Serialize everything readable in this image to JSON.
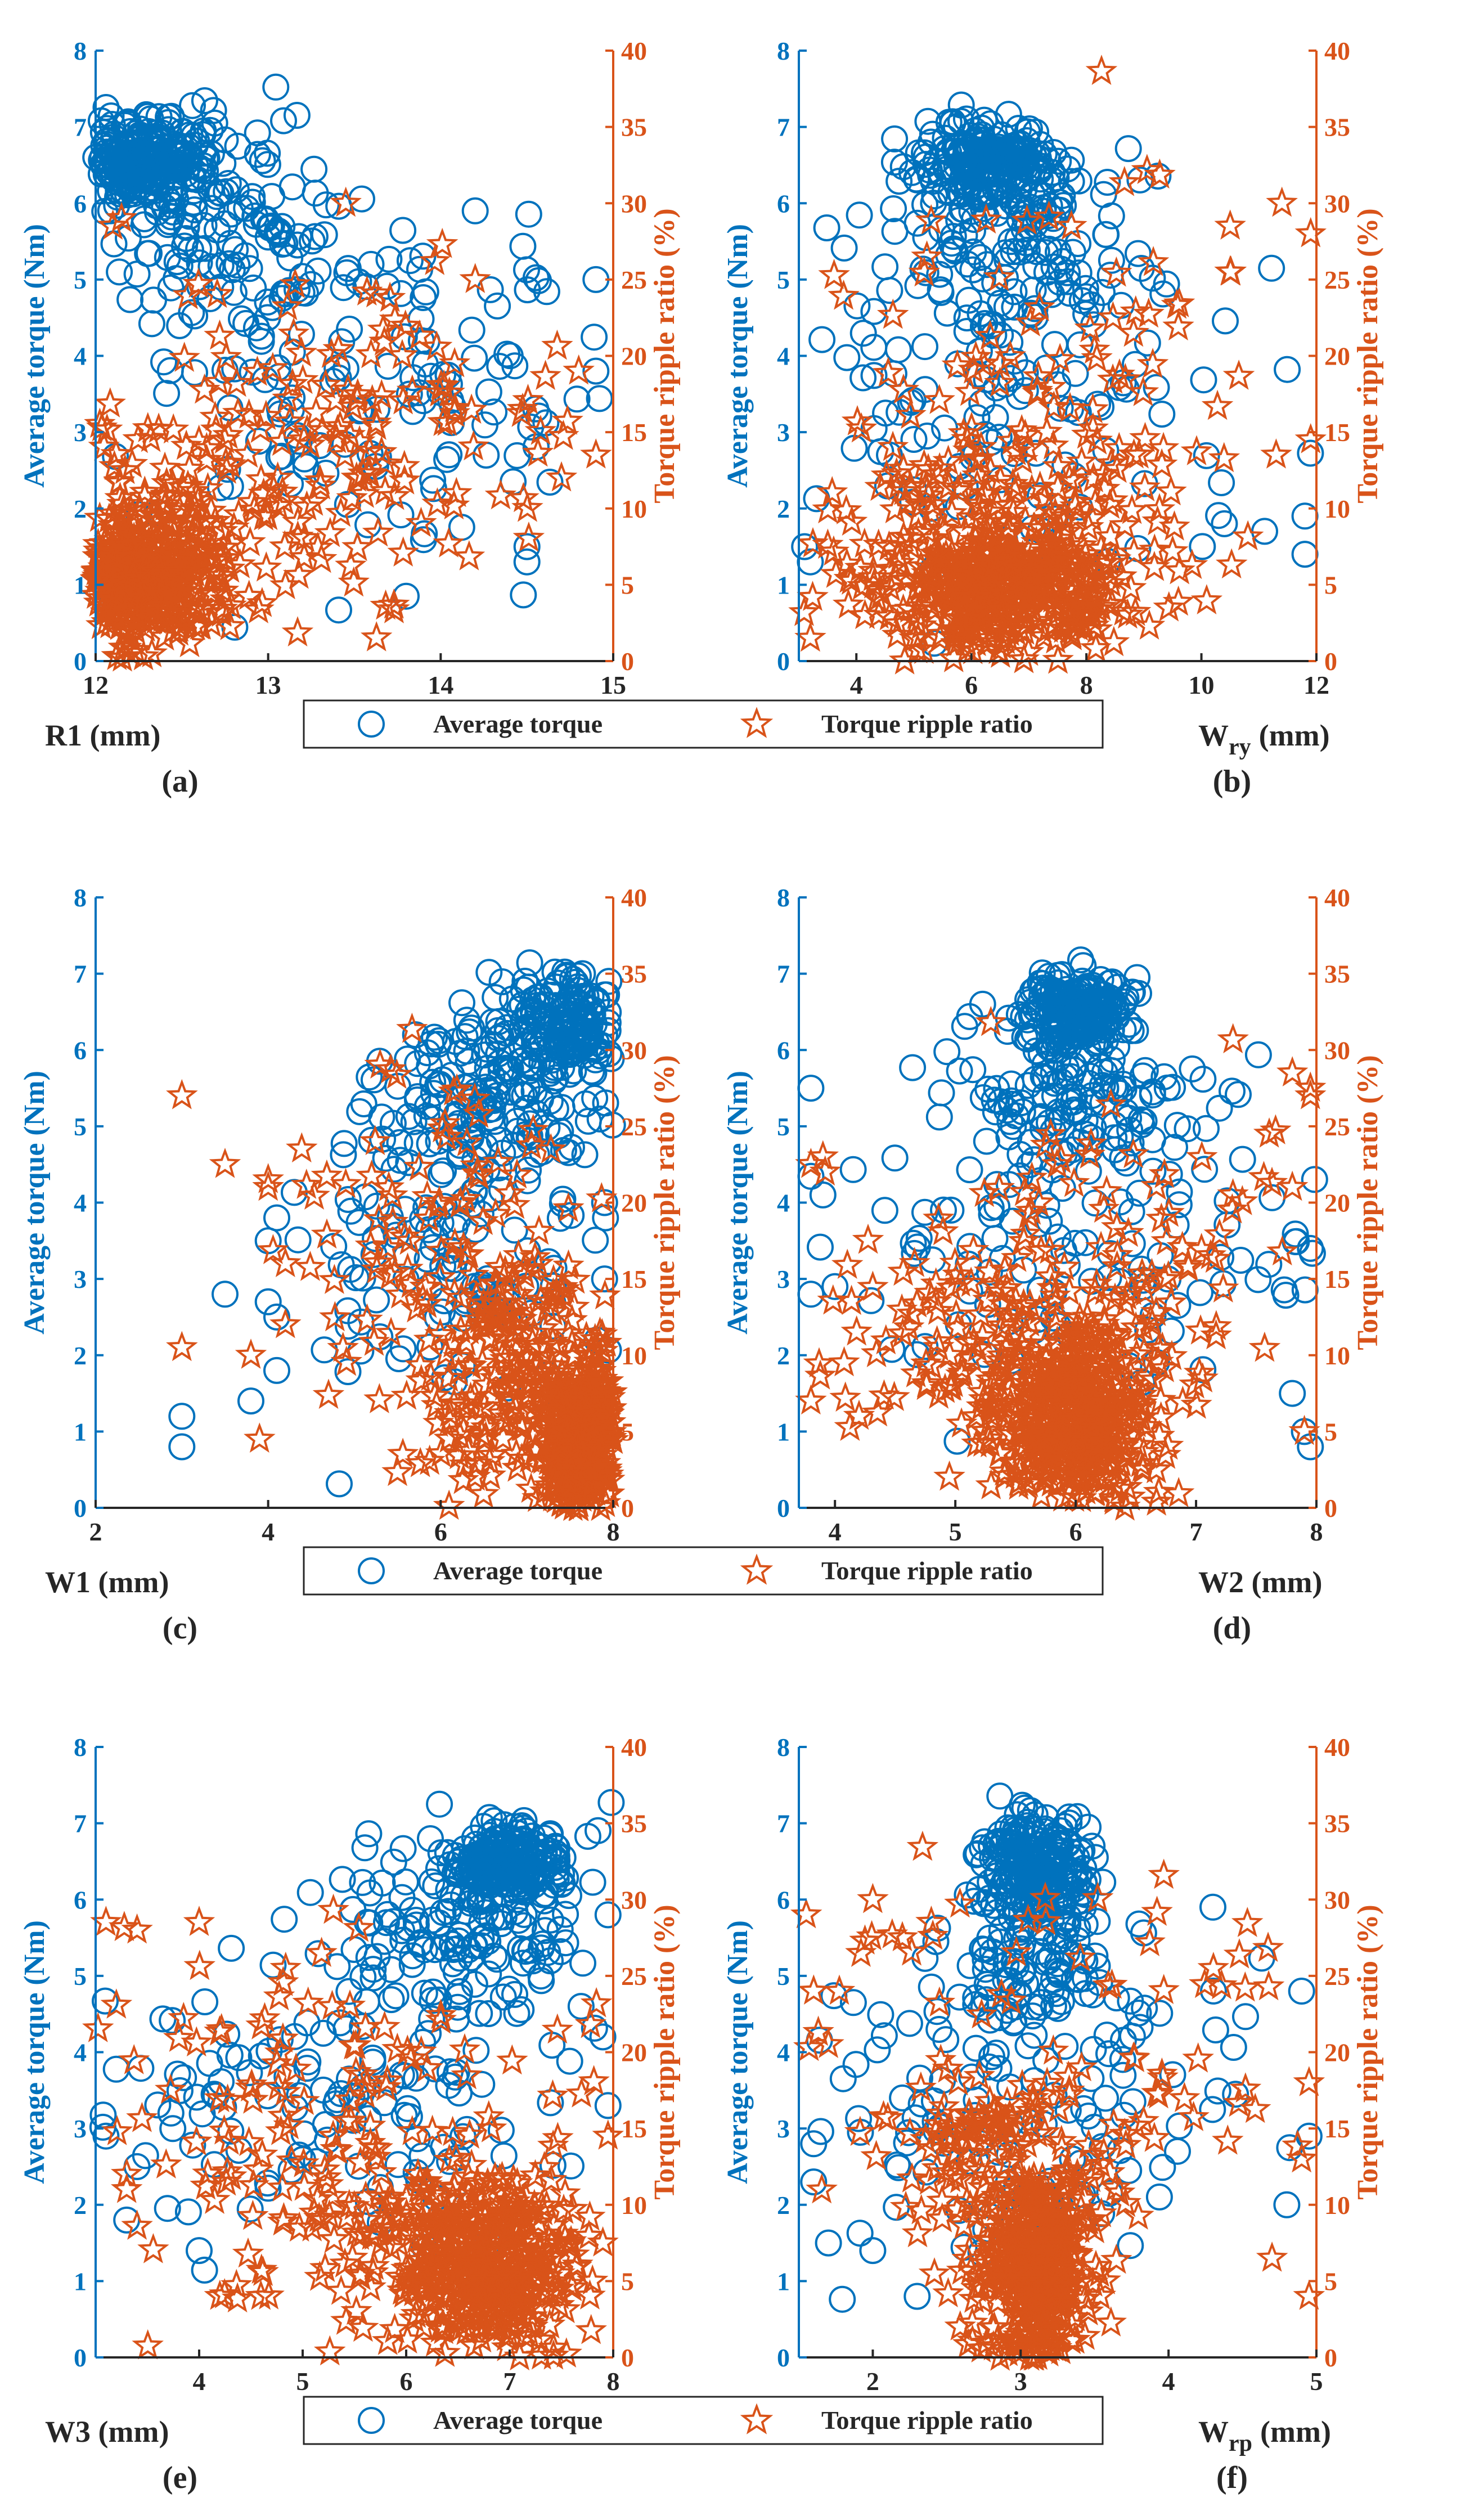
{
  "colors": {
    "torque": "#0072BD",
    "ripple": "#D95319",
    "axis": "#262626",
    "background": "#ffffff"
  },
  "legend": {
    "avg_label": "Average torque",
    "ripple_label": "Torque ripple ratio"
  },
  "chart_data": [
    {
      "type": "scatter",
      "panel_label": "(a)",
      "xlabel": "R1 (mm)",
      "xlabel_main": "R1 (mm)",
      "xlabel_sub": "",
      "xlim": [
        12,
        15
      ],
      "xticks": [
        12,
        13,
        14,
        15
      ],
      "ylabel_left": "Average torque (Nm)",
      "ylim_left": [
        0,
        8
      ],
      "yticks_left": [
        0,
        1,
        2,
        3,
        4,
        5,
        6,
        7,
        8
      ],
      "ylabel_right": "Torque ripple ratio (%)",
      "ylim_right": [
        0,
        40
      ],
      "yticks_right": [
        0,
        5,
        10,
        15,
        20,
        25,
        30,
        35,
        40
      ],
      "series": [
        {
          "name": "Average torque",
          "marker": "circle",
          "axis": "left",
          "clusters": [
            {
              "cx": 12.3,
              "cy": 6.55,
              "sx": 0.18,
              "sy": 0.3,
              "n": 230
            },
            {
              "cx": 12.7,
              "cy": 5.6,
              "sx": 0.4,
              "sy": 0.8,
              "n": 140
            },
            {
              "cx": 13.5,
              "cy": 3.8,
              "sx": 0.7,
              "sy": 1.2,
              "n": 100
            },
            {
              "cx": 14.2,
              "cy": 3.3,
              "sx": 0.5,
              "sy": 1.2,
              "n": 40
            }
          ],
          "points": [
            [
              12.05,
              1.3
            ],
            [
              12.1,
              0.8
            ],
            [
              13.8,
              0.85
            ],
            [
              14.5,
              1.3
            ],
            [
              14.5,
              1.5
            ],
            [
              14.9,
              5.0
            ],
            [
              14.9,
              3.8
            ],
            [
              14.2,
              5.9
            ]
          ]
        },
        {
          "name": "Torque ripple ratio",
          "marker": "star",
          "axis": "right",
          "clusters": [
            {
              "cx": 12.25,
              "cy": 5.5,
              "sx": 0.22,
              "sy": 2.2,
              "n": 450
            },
            {
              "cx": 12.8,
              "cy": 10.0,
              "sx": 0.5,
              "sy": 4.0,
              "n": 130
            },
            {
              "cx": 13.6,
              "cy": 16.0,
              "sx": 0.7,
              "sy": 6.0,
              "n": 110
            }
          ],
          "points": [
            [
              12.1,
              28.5
            ],
            [
              12.15,
              29.0
            ],
            [
              13.45,
              30.0
            ],
            [
              14.2,
              25.0
            ],
            [
              14.7,
              12.0
            ],
            [
              14.9,
              13.5
            ],
            [
              14.8,
              19.0
            ]
          ]
        }
      ]
    },
    {
      "type": "scatter",
      "panel_label": "(b)",
      "xlabel": "W_ry (mm)",
      "xlabel_main": "W",
      "xlabel_sub": "ry",
      "xlabel_unit": "(mm)",
      "xlim": [
        3,
        12
      ],
      "xticks": [
        4,
        6,
        8,
        10,
        12
      ],
      "ylabel_left": "Average torque (Nm)",
      "ylim_left": [
        0,
        8
      ],
      "yticks_left": [
        0,
        1,
        2,
        3,
        4,
        5,
        6,
        7,
        8
      ],
      "ylabel_right": "Torque ripple ratio (%)",
      "ylim_right": [
        0,
        40
      ],
      "yticks_right": [
        0,
        5,
        10,
        15,
        20,
        25,
        30,
        35,
        40
      ],
      "series": [
        {
          "name": "Average torque",
          "marker": "circle",
          "axis": "left",
          "clusters": [
            {
              "cx": 6.3,
              "cy": 6.55,
              "sx": 0.6,
              "sy": 0.25,
              "n": 200
            },
            {
              "cx": 6.8,
              "cy": 5.7,
              "sx": 1.2,
              "sy": 0.6,
              "n": 130
            },
            {
              "cx": 6.5,
              "cy": 3.5,
              "sx": 2.0,
              "sy": 1.2,
              "n": 130
            }
          ],
          "points": [
            [
              3.2,
              1.3
            ],
            [
              3.1,
              1.5
            ],
            [
              11.8,
              1.4
            ],
            [
              11.8,
              1.9
            ],
            [
              11.1,
              1.7
            ],
            [
              10.4,
              1.8
            ]
          ]
        },
        {
          "name": "Torque ripple ratio",
          "marker": "star",
          "axis": "right",
          "clusters": [
            {
              "cx": 6.5,
              "cy": 4.5,
              "sx": 1.1,
              "sy": 2.2,
              "n": 420
            },
            {
              "cx": 6.8,
              "cy": 9.5,
              "sx": 1.8,
              "sy": 3.5,
              "n": 160
            },
            {
              "cx": 7.0,
              "cy": 20.0,
              "sx": 2.0,
              "sy": 6.0,
              "n": 70
            }
          ],
          "points": [
            [
              3.2,
              1.5
            ],
            [
              11.9,
              28.0
            ],
            [
              11.4,
              30.0
            ],
            [
              10.5,
              28.5
            ],
            [
              10.5,
              25.5
            ],
            [
              11.9,
              14.5
            ],
            [
              11.3,
              13.5
            ]
          ]
        }
      ]
    },
    {
      "type": "scatter",
      "panel_label": "(c)",
      "xlabel": "W1 (mm)",
      "xlabel_main": "W1 (mm)",
      "xlabel_sub": "",
      "xlim": [
        2,
        8
      ],
      "xticks": [
        2,
        4,
        6,
        8
      ],
      "ylabel_left": "Average torque (Nm)",
      "ylim_left": [
        0,
        8
      ],
      "yticks_left": [
        0,
        1,
        2,
        3,
        4,
        5,
        6,
        7,
        8
      ],
      "ylabel_right": "Torque ripple ratio (%)",
      "ylim_right": [
        0,
        40
      ],
      "yticks_right": [
        0,
        5,
        10,
        15,
        20,
        25,
        30,
        35,
        40
      ],
      "series": [
        {
          "name": "Average torque",
          "marker": "circle",
          "axis": "left",
          "clusters": [
            {
              "cx": 7.5,
              "cy": 6.3,
              "sx": 0.35,
              "sy": 0.35,
              "n": 170
            },
            {
              "cx": 6.6,
              "cy": 5.3,
              "sx": 0.6,
              "sy": 0.6,
              "n": 140
            },
            {
              "cx": 6.0,
              "cy": 3.3,
              "sx": 0.9,
              "sy": 1.1,
              "n": 120
            }
          ],
          "points": [
            [
              3.0,
              1.2
            ],
            [
              3.0,
              0.8
            ],
            [
              3.5,
              2.8
            ],
            [
              3.8,
              1.4
            ],
            [
              4.0,
              2.7
            ],
            [
              4.1,
              2.5
            ],
            [
              4.1,
              1.8
            ],
            [
              4.0,
              3.5
            ],
            [
              4.1,
              3.8
            ],
            [
              7.95,
              6.9
            ],
            [
              7.9,
              4.0
            ],
            [
              7.9,
              3.0
            ]
          ]
        },
        {
          "name": "Torque ripple ratio",
          "marker": "star",
          "axis": "right",
          "clusters": [
            {
              "cx": 7.6,
              "cy": 4.5,
              "sx": 0.25,
              "sy": 2.8,
              "n": 380
            },
            {
              "cx": 6.9,
              "cy": 9.0,
              "sx": 0.6,
              "sy": 4.0,
              "n": 170
            },
            {
              "cx": 6.0,
              "cy": 16.0,
              "sx": 0.9,
              "sy": 6.0,
              "n": 110
            }
          ],
          "points": [
            [
              3.0,
              27.0
            ],
            [
              3.5,
              22.5
            ],
            [
              4.0,
              21.5
            ],
            [
              4.0,
              21.0
            ],
            [
              4.2,
              16.0
            ],
            [
              3.9,
              4.5
            ],
            [
              3.0,
              10.5
            ],
            [
              3.8,
              10.0
            ],
            [
              4.2,
              12.0
            ]
          ]
        }
      ]
    },
    {
      "type": "scatter",
      "panel_label": "(d)",
      "xlabel": "W2 (mm)",
      "xlabel_main": "W2 (mm)",
      "xlabel_sub": "",
      "xlim": [
        3.7,
        8
      ],
      "xticks": [
        4,
        5,
        6,
        7,
        8
      ],
      "ylabel_left": "Average torque (Nm)",
      "ylim_left": [
        0,
        8
      ],
      "yticks_left": [
        0,
        1,
        2,
        3,
        4,
        5,
        6,
        7,
        8
      ],
      "ylabel_right": "Torque ripple ratio (%)",
      "ylim_right": [
        0,
        40
      ],
      "yticks_right": [
        0,
        5,
        10,
        15,
        20,
        25,
        30,
        35,
        40
      ],
      "series": [
        {
          "name": "Average torque",
          "marker": "circle",
          "axis": "left",
          "clusters": [
            {
              "cx": 6.0,
              "cy": 6.55,
              "sx": 0.22,
              "sy": 0.22,
              "n": 200
            },
            {
              "cx": 6.0,
              "cy": 5.5,
              "sx": 0.5,
              "sy": 0.6,
              "n": 140
            },
            {
              "cx": 6.0,
              "cy": 3.4,
              "sx": 1.2,
              "sy": 1.0,
              "n": 120
            }
          ],
          "points": [
            [
              3.8,
              5.5
            ],
            [
              3.8,
              2.8
            ],
            [
              3.9,
              4.1
            ],
            [
              4.0,
              2.9
            ],
            [
              7.95,
              0.8
            ],
            [
              7.9,
              1.0
            ],
            [
              7.8,
              1.5
            ],
            [
              7.95,
              3.4
            ]
          ]
        },
        {
          "name": "Torque ripple ratio",
          "marker": "star",
          "axis": "right",
          "clusters": [
            {
              "cx": 6.0,
              "cy": 5.5,
              "sx": 0.35,
              "sy": 2.8,
              "n": 380
            },
            {
              "cx": 5.6,
              "cy": 10.0,
              "sx": 0.6,
              "sy": 3.5,
              "n": 150
            },
            {
              "cx": 6.0,
              "cy": 16.0,
              "sx": 1.2,
              "sy": 5.5,
              "n": 110
            }
          ],
          "points": [
            [
              3.8,
              7.0
            ],
            [
              3.8,
              22.5
            ],
            [
              3.9,
              23.0
            ],
            [
              4.2,
              6.0
            ],
            [
              7.95,
              27.5
            ],
            [
              7.95,
              27.0
            ],
            [
              7.8,
              28.5
            ],
            [
              7.9,
              5.0
            ],
            [
              7.8,
              21.0
            ]
          ]
        }
      ]
    },
    {
      "type": "scatter",
      "panel_label": "(e)",
      "xlabel": "W3 (mm)",
      "xlabel_main": "W3 (mm)",
      "xlabel_sub": "",
      "xlim": [
        3,
        8
      ],
      "xticks": [
        4,
        5,
        6,
        7,
        8
      ],
      "ylabel_left": "Average torque (Nm)",
      "ylim_left": [
        0,
        8
      ],
      "yticks_left": [
        0,
        1,
        2,
        3,
        4,
        5,
        6,
        7,
        8
      ],
      "ylabel_right": "Torque ripple ratio (%)",
      "ylim_right": [
        0,
        40
      ],
      "yticks_right": [
        0,
        5,
        10,
        15,
        20,
        25,
        30,
        35,
        40
      ],
      "series": [
        {
          "name": "Average torque",
          "marker": "circle",
          "axis": "left",
          "clusters": [
            {
              "cx": 7.0,
              "cy": 6.5,
              "sx": 0.3,
              "sy": 0.25,
              "n": 200
            },
            {
              "cx": 6.5,
              "cy": 5.5,
              "sx": 0.7,
              "sy": 0.6,
              "n": 140
            },
            {
              "cx": 5.5,
              "cy": 3.5,
              "sx": 1.2,
              "sy": 0.9,
              "n": 120
            }
          ],
          "points": [
            [
              3.1,
              2.9
            ],
            [
              3.4,
              2.5
            ],
            [
              3.3,
              1.8
            ],
            [
              4.0,
              1.4
            ],
            [
              7.95,
              5.8
            ],
            [
              7.9,
              4.2
            ],
            [
              7.95,
              3.3
            ],
            [
              7.5,
              6.2
            ]
          ]
        },
        {
          "name": "Torque ripple ratio",
          "marker": "star",
          "axis": "right",
          "clusters": [
            {
              "cx": 6.8,
              "cy": 5.5,
              "sx": 0.4,
              "sy": 2.8,
              "n": 380
            },
            {
              "cx": 6.0,
              "cy": 8.5,
              "sx": 0.8,
              "sy": 3.5,
              "n": 140
            },
            {
              "cx": 5.2,
              "cy": 17.0,
              "sx": 1.3,
              "sy": 6.0,
              "n": 110
            }
          ],
          "points": [
            [
              3.1,
              28.5
            ],
            [
              3.4,
              28.0
            ],
            [
              3.3,
              12.0
            ],
            [
              3.3,
              11.0
            ],
            [
              4.0,
              28.5
            ],
            [
              4.2,
              4.0
            ],
            [
              7.95,
              14.5
            ],
            [
              7.9,
              7.5
            ],
            [
              7.8,
              5.0
            ]
          ]
        }
      ]
    },
    {
      "type": "scatter",
      "panel_label": "(f)",
      "xlabel": "W_rp (mm)",
      "xlabel_main": "W",
      "xlabel_sub": "rp",
      "xlabel_unit": "(mm)",
      "xlim": [
        1.5,
        5
      ],
      "xticks": [
        2,
        3,
        4,
        5
      ],
      "ylabel_left": "Average torque (Nm)",
      "ylim_left": [
        0,
        8
      ],
      "yticks_left": [
        0,
        1,
        2,
        3,
        4,
        5,
        6,
        7,
        8
      ],
      "ylabel_right": "Torque ripple ratio (%)",
      "ylim_right": [
        0,
        40
      ],
      "yticks_right": [
        0,
        5,
        10,
        15,
        20,
        25,
        30,
        35,
        40
      ],
      "series": [
        {
          "name": "Average torque",
          "marker": "circle",
          "axis": "left",
          "clusters": [
            {
              "cx": 3.1,
              "cy": 6.4,
              "sx": 0.18,
              "sy": 0.35,
              "n": 230
            },
            {
              "cx": 3.1,
              "cy": 5.2,
              "sx": 0.3,
              "sy": 0.6,
              "n": 110
            },
            {
              "cx": 3.1,
              "cy": 3.3,
              "sx": 0.8,
              "sy": 1.0,
              "n": 120
            }
          ],
          "points": [
            [
              1.6,
              2.3
            ],
            [
              1.6,
              2.8
            ],
            [
              1.7,
              1.5
            ],
            [
              2.0,
              1.4
            ],
            [
              2.3,
              0.8
            ],
            [
              4.95,
              2.9
            ],
            [
              4.9,
              4.8
            ],
            [
              4.3,
              5.9
            ],
            [
              4.8,
              2.0
            ]
          ]
        },
        {
          "name": "Torque ripple ratio",
          "marker": "star",
          "axis": "right",
          "clusters": [
            {
              "cx": 3.1,
              "cy": 6.0,
              "sx": 0.22,
              "sy": 3.5,
              "n": 420
            },
            {
              "cx": 2.8,
              "cy": 13.5,
              "sx": 0.3,
              "sy": 2.0,
              "n": 70
            },
            {
              "cx": 3.2,
              "cy": 18.0,
              "sx": 0.9,
              "sy": 6.0,
              "n": 110
            }
          ],
          "points": [
            [
              1.55,
              29.0
            ],
            [
              1.6,
              24.0
            ],
            [
              1.7,
              20.5
            ],
            [
              2.0,
              30.0
            ],
            [
              2.2,
              27.5
            ],
            [
              4.95,
              4.0
            ],
            [
              4.95,
              18.0
            ],
            [
              4.9,
              13.0
            ],
            [
              4.7,
              6.5
            ]
          ]
        }
      ]
    }
  ]
}
